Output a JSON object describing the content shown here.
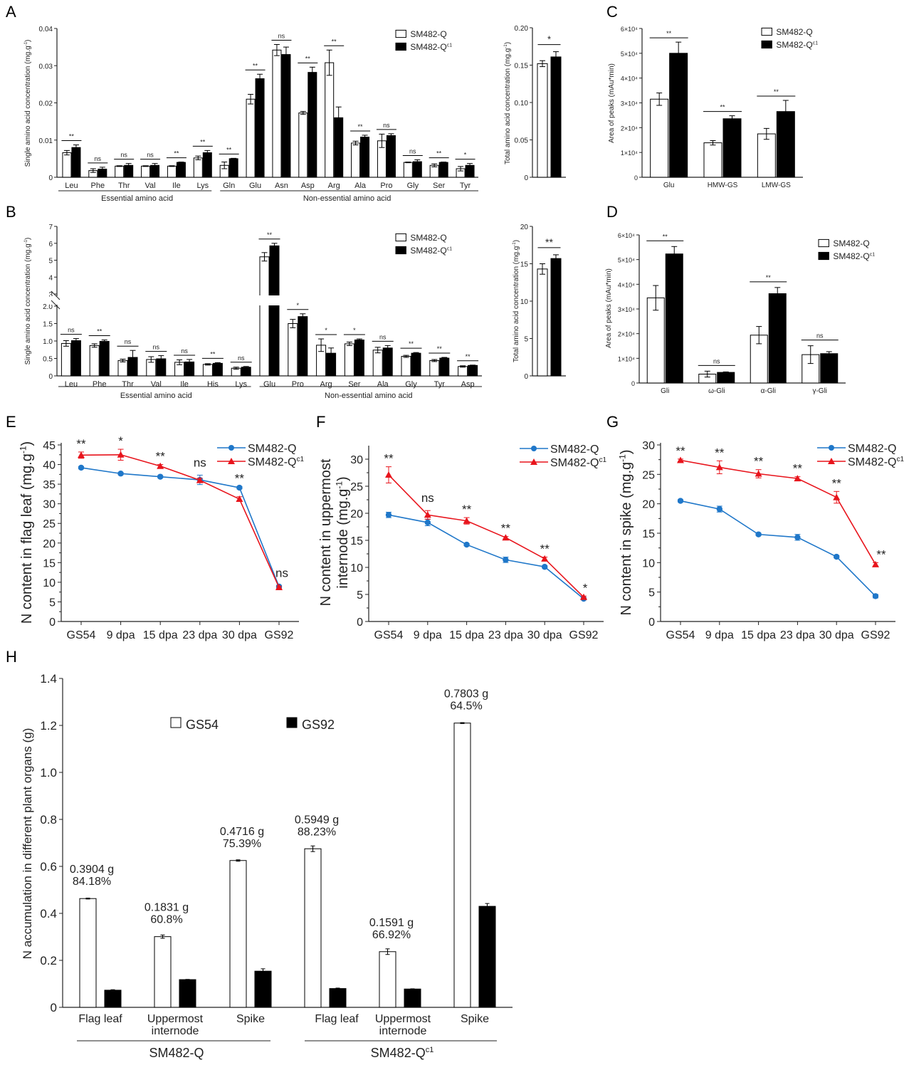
{
  "figure": {
    "panel_letters": [
      "A",
      "B",
      "C",
      "D",
      "E",
      "F",
      "G",
      "H"
    ]
  },
  "colors": {
    "series_open": "#ffffff",
    "series_filled": "#000000",
    "line_q": "#1f77c9",
    "line_qc1": "#e8141c",
    "axis": "#222222"
  },
  "chart_data": [
    {
      "id": "A",
      "type": "bar",
      "title": "",
      "ylabel": "Single amino acid concentration (mg.g-1)",
      "ylim": [
        0,
        0.04
      ],
      "yticks": [
        "0",
        "0.01",
        "0.02",
        "0.03",
        "0.04"
      ],
      "legend": [
        "SM482-Q",
        "SM482-Qc1"
      ],
      "legend_position": "top-right",
      "groups": [
        {
          "label": "Essential amino acid",
          "categories": [
            "Leu",
            "Phe",
            "Thr",
            "Val",
            "Ile",
            "Lys"
          ]
        },
        {
          "label": "Non-essential amino acid",
          "categories": [
            "Gln",
            "Glu",
            "Asn",
            "Asp",
            "Arg",
            "Ala",
            "Pro",
            "Gly",
            "Ser",
            "Tyr"
          ]
        }
      ],
      "categories": [
        "Leu",
        "Phe",
        "Thr",
        "Val",
        "Ile",
        "Lys",
        "Gln",
        "Glu",
        "Asn",
        "Asp",
        "Arg",
        "Ala",
        "Pro",
        "Gly",
        "Ser",
        "Tyr"
      ],
      "series": [
        {
          "name": "SM482-Q",
          "values": [
            0.0066,
            0.0018,
            0.003,
            0.003,
            0.003,
            0.0052,
            0.0032,
            0.021,
            0.0342,
            0.0173,
            0.0308,
            0.0092,
            0.0098,
            0.004,
            0.0032,
            0.0023
          ],
          "errors": [
            0.0006,
            0.0005,
            0.0001,
            0.0001,
            0.0001,
            0.0005,
            0.0009,
            0.0013,
            0.0015,
            0.0004,
            0.0034,
            0.0005,
            0.0018,
            0.0001,
            0.0004,
            0.0006
          ]
        },
        {
          "name": "SM482-Qc1",
          "values": [
            0.008,
            0.0022,
            0.0032,
            0.0032,
            0.004,
            0.0066,
            0.005,
            0.0265,
            0.033,
            0.0282,
            0.016,
            0.0108,
            0.0112,
            0.0042,
            0.004,
            0.0032
          ],
          "errors": [
            0.0007,
            0.0005,
            0.0005,
            0.0005,
            0.0001,
            0.0006,
            0.0001,
            0.0012,
            0.002,
            0.0014,
            0.0029,
            0.0005,
            0.0005,
            0.0005,
            0.0001,
            0.0005
          ]
        }
      ],
      "significance": [
        "**",
        "ns",
        "ns",
        "ns",
        "**",
        "**",
        "**",
        "**",
        "ns",
        "**",
        "**",
        "**",
        "ns",
        "ns",
        "**",
        "*"
      ]
    },
    {
      "id": "A-total",
      "type": "bar",
      "ylabel": "Total amino acid concentration (mg.g-1)",
      "ylim": [
        0,
        0.2
      ],
      "yticks": [
        "0",
        "0.05",
        "0.10",
        "0.15",
        "0.20"
      ],
      "categories": [
        ""
      ],
      "series": [
        {
          "name": "SM482-Q",
          "values": [
            0.152
          ],
          "errors": [
            0.004
          ]
        },
        {
          "name": "SM482-Qc1",
          "values": [
            0.161
          ],
          "errors": [
            0.007
          ]
        }
      ],
      "significance": [
        "*"
      ]
    },
    {
      "id": "B",
      "type": "bar",
      "ylabel": "Single amino acid concentration (mg.g-1)",
      "ylim": [
        0,
        7
      ],
      "axis_break": [
        2.0,
        3
      ],
      "yticks_lower": [
        "0",
        "0.5",
        "1.0",
        "1.5",
        "2.0"
      ],
      "yticks_upper": [
        "3",
        "4",
        "5",
        "6",
        "7"
      ],
      "legend": [
        "SM482-Q",
        "SM482-Qc1"
      ],
      "legend_position": "top-right",
      "groups": [
        {
          "label": "Essential amino acid",
          "categories": [
            "Leu",
            "Phe",
            "Thr",
            "Val",
            "Ile",
            "His",
            "Lys"
          ]
        },
        {
          "label": "Non-essential amino acid",
          "categories": [
            "Glu",
            "Pro",
            "Arg",
            "Ser",
            "Ala",
            "Gly",
            "Tyr",
            "Asp"
          ]
        }
      ],
      "categories": [
        "Leu",
        "Phe",
        "Thr",
        "Val",
        "Ile",
        "His",
        "Lys",
        "Glu",
        "Pro",
        "Arg",
        "Ser",
        "Ala",
        "Gly",
        "Tyr",
        "Asp"
      ],
      "series": [
        {
          "name": "SM482-Q",
          "values": [
            0.93,
            0.87,
            0.44,
            0.47,
            0.39,
            0.33,
            0.22,
            5.2,
            1.5,
            0.88,
            0.92,
            0.74,
            0.56,
            0.44,
            0.27
          ],
          "errors": [
            0.08,
            0.05,
            0.04,
            0.08,
            0.07,
            0.02,
            0.03,
            0.25,
            0.12,
            0.18,
            0.05,
            0.08,
            0.03,
            0.03,
            0.02
          ]
        },
        {
          "name": "SM482-Qc1",
          "values": [
            1.01,
            0.99,
            0.53,
            0.49,
            0.4,
            0.36,
            0.25,
            5.85,
            1.7,
            0.65,
            1.03,
            0.8,
            0.65,
            0.51,
            0.3
          ],
          "errors": [
            0.06,
            0.04,
            0.2,
            0.09,
            0.07,
            0.02,
            0.02,
            0.15,
            0.08,
            0.15,
            0.03,
            0.07,
            0.02,
            0.02,
            0.01
          ]
        }
      ],
      "significance": [
        "ns",
        "**",
        "ns",
        "ns",
        "ns",
        "**",
        "ns",
        "**",
        "*",
        "*",
        "*",
        "ns",
        "**",
        "**",
        "**"
      ]
    },
    {
      "id": "B-total",
      "type": "bar",
      "ylabel": "Total amino acid concentration (mg.g-1)",
      "ylim": [
        0,
        20
      ],
      "yticks": [
        "0",
        "5",
        "10",
        "15",
        "20"
      ],
      "categories": [
        ""
      ],
      "series": [
        {
          "name": "SM482-Q",
          "values": [
            14.3
          ],
          "errors": [
            0.7
          ]
        },
        {
          "name": "SM482-Qc1",
          "values": [
            15.7
          ],
          "errors": [
            0.5
          ]
        }
      ],
      "significance": [
        "**"
      ]
    },
    {
      "id": "C",
      "type": "bar",
      "ylabel": "Area of peaks (mAu*min)",
      "ylim": [
        0,
        60000
      ],
      "yticks": [
        "0",
        "1×10⁴",
        "2×10⁴",
        "3×10⁴",
        "4×10⁴",
        "5×10⁴",
        "6×10⁴"
      ],
      "legend": [
        "SM482-Q",
        "SM482-Qc1"
      ],
      "legend_position": "top-right",
      "categories": [
        "Glu",
        "HMW-GS",
        "LMW-GS"
      ],
      "series": [
        {
          "name": "SM482-Q",
          "values": [
            31500,
            13900,
            17500
          ],
          "errors": [
            2500,
            900,
            2200
          ]
        },
        {
          "name": "SM482-Qc1",
          "values": [
            50000,
            23600,
            26500
          ],
          "errors": [
            4500,
            1200,
            4500
          ]
        }
      ],
      "significance": [
        "**",
        "**",
        "**"
      ]
    },
    {
      "id": "D",
      "type": "bar",
      "ylabel": "Area of peaks (mAu*min)",
      "ylim": [
        0,
        60000
      ],
      "yticks": [
        "0",
        "1×10⁴",
        "2×10⁴",
        "3×10⁴",
        "4×10⁴",
        "5×10⁴",
        "6×10⁴"
      ],
      "legend": [
        "SM482-Q",
        "SM482-Qc1"
      ],
      "legend_position": "top-right",
      "categories": [
        "Gli",
        "ω-Gli",
        "α-Gli",
        "γ-Gli"
      ],
      "series": [
        {
          "name": "SM482-Q",
          "values": [
            34500,
            3600,
            19400,
            11500
          ],
          "errors": [
            5000,
            1200,
            3500,
            3600
          ]
        },
        {
          "name": "SM482-Qc1",
          "values": [
            52300,
            4300,
            36200,
            11900
          ],
          "errors": [
            3000,
            200,
            2500,
            800
          ]
        }
      ],
      "significance": [
        "**",
        "ns",
        "**",
        "ns"
      ]
    },
    {
      "id": "E",
      "type": "line",
      "ylabel": "N content in flag leaf (mg.g-1)",
      "ylim": [
        0,
        45
      ],
      "yticks": [
        "0",
        "5",
        "10",
        "15",
        "20",
        "25",
        "30",
        "35",
        "40",
        "45"
      ],
      "x": [
        "GS54",
        "9 dpa",
        "15 dpa",
        "23 dpa",
        "30 dpa",
        "GS92"
      ],
      "legend_position": "top-right",
      "series": [
        {
          "name": "SM482-Q",
          "values": [
            39.2,
            37.7,
            36.9,
            36.1,
            34.1,
            8.9
          ],
          "errors": [
            0.3,
            0.3,
            0.3,
            1.2,
            0.3,
            0.3
          ]
        },
        {
          "name": "SM482-Qc1",
          "values": [
            42.4,
            42.5,
            39.6,
            36.0,
            31.2,
            8.7
          ],
          "errors": [
            0.8,
            1.4,
            0.4,
            0.5,
            0.6,
            0.3
          ]
        }
      ],
      "significance": [
        "**",
        "*",
        "**",
        "ns",
        "**",
        "ns"
      ]
    },
    {
      "id": "F",
      "type": "line",
      "ylabel": "N content in uppermost internode (mg.g-1)",
      "ylim": [
        0,
        32
      ],
      "yticks": [
        "0",
        "5",
        "10",
        "15",
        "20",
        "25",
        "30"
      ],
      "x": [
        "GS54",
        "9 dpa",
        "15 dpa",
        "23 dpa",
        "30 dpa",
        "GS92"
      ],
      "legend_position": "top-right",
      "series": [
        {
          "name": "SM482-Q",
          "values": [
            19.7,
            18.3,
            14.2,
            11.4,
            10.1,
            4.2
          ],
          "errors": [
            0.5,
            0.6,
            0.2,
            0.5,
            0.2,
            0.2
          ]
        },
        {
          "name": "SM482-Qc1",
          "values": [
            27.1,
            19.7,
            18.6,
            15.5,
            11.6,
            4.5
          ],
          "errors": [
            1.5,
            0.8,
            0.6,
            0.2,
            0.3,
            0.2
          ]
        }
      ],
      "significance": [
        "**",
        "ns",
        "**",
        "**",
        "**",
        "*"
      ]
    },
    {
      "id": "G",
      "type": "line",
      "ylabel": "N content in spike (mg.g-1)",
      "ylim": [
        0,
        30
      ],
      "yticks": [
        "0",
        "5",
        "10",
        "15",
        "20",
        "25",
        "30"
      ],
      "x": [
        "GS54",
        "9 dpa",
        "15 dpa",
        "23 dpa",
        "30 dpa",
        "GS92"
      ],
      "legend_position": "top-right",
      "series": [
        {
          "name": "SM482-Q",
          "values": [
            20.5,
            19.1,
            14.8,
            14.3,
            11.0,
            4.3
          ],
          "errors": [
            0.2,
            0.5,
            0.2,
            0.5,
            0.2,
            0.3
          ]
        },
        {
          "name": "SM482-Qc1",
          "values": [
            27.4,
            26.2,
            25.1,
            24.3,
            21.1,
            9.7
          ],
          "errors": [
            0.2,
            1.1,
            0.7,
            0.3,
            1.0,
            0.3
          ]
        }
      ],
      "significance": [
        "**",
        "**",
        "**",
        "**",
        "**",
        "**"
      ]
    },
    {
      "id": "H",
      "type": "bar",
      "ylabel": "N accumulation in different plant organs (g)",
      "ylim": [
        0,
        1.4
      ],
      "yticks": [
        "0",
        "0.2",
        "0.4",
        "0.6",
        "0.8",
        "1.0",
        "1.2",
        "1.4"
      ],
      "legend": [
        "GS54",
        "GS92"
      ],
      "legend_position": "top-center",
      "groups": [
        {
          "label": "SM482-Q",
          "categories": [
            "Flag leaf",
            "Uppermost internode",
            "Spike"
          ]
        },
        {
          "label": "SM482-Qc1",
          "categories": [
            "Flag leaf",
            "Uppermost internode",
            "Spike"
          ]
        }
      ],
      "categories": [
        "Flag leaf",
        "Uppermost internode",
        "Spike",
        "Flag leaf",
        "Uppermost internode",
        "Spike"
      ],
      "series": [
        {
          "name": "GS54",
          "values": [
            0.463,
            0.301,
            0.625,
            0.675,
            0.237,
            1.21
          ],
          "errors": [
            0.002,
            0.007,
            0.003,
            0.012,
            0.012,
            0.002
          ]
        },
        {
          "name": "GS92",
          "values": [
            0.073,
            0.118,
            0.154,
            0.08,
            0.078,
            0.43
          ],
          "errors": [
            0.002,
            0.001,
            0.01,
            0.002,
            0.001,
            0.012
          ]
        }
      ],
      "annotations": [
        {
          "grams": "0.3904 g",
          "percent": "84.18%"
        },
        {
          "grams": "0.1831 g",
          "percent": "60.8%"
        },
        {
          "grams": "0.4716 g",
          "percent": "75.39%"
        },
        {
          "grams": "0.5949 g",
          "percent": "88.23%"
        },
        {
          "grams": "0.1591 g",
          "percent": "66.92%"
        },
        {
          "grams": "0.7803 g",
          "percent": "64.5%"
        }
      ]
    }
  ]
}
